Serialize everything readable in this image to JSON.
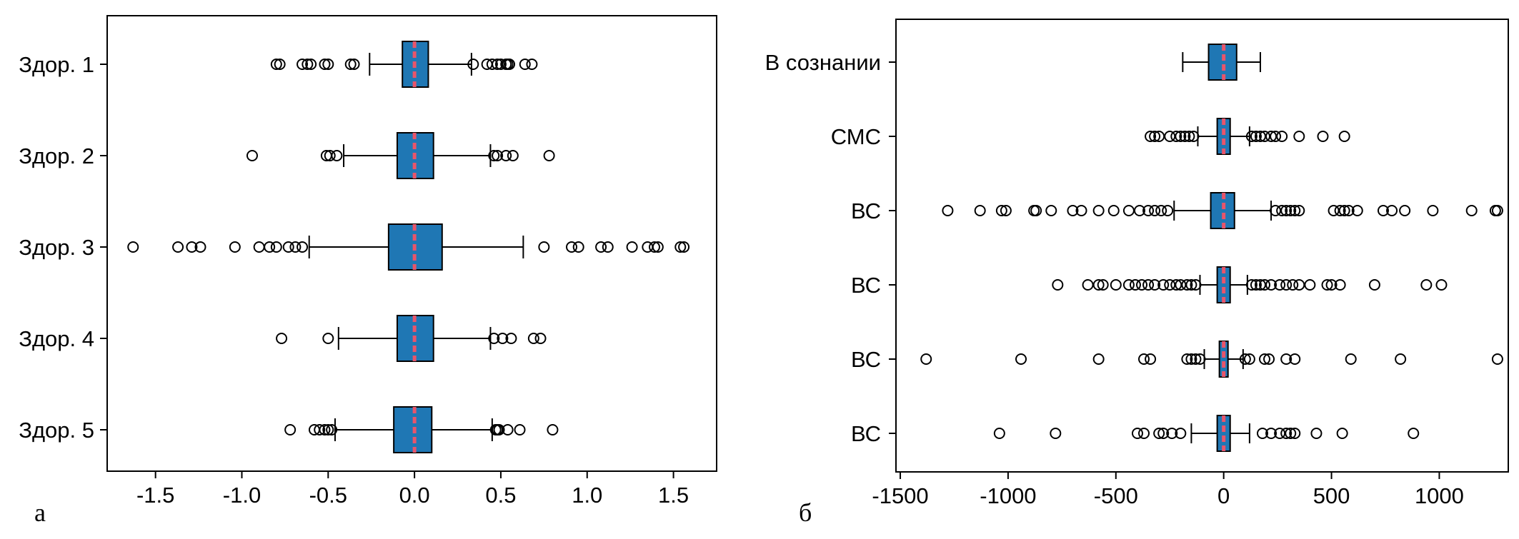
{
  "chart_data": [
    {
      "type": "boxplot",
      "orientation": "horizontal",
      "panel_label": "а",
      "xlim": [
        -1.78,
        1.75
      ],
      "xticks": [
        -1.5,
        -1.0,
        -0.5,
        0.0,
        0.5,
        1.0,
        1.5
      ],
      "xtick_labels": [
        "-1.5",
        "-1.0",
        "-0.5",
        "0.0",
        "0.5",
        "1.0",
        "1.5"
      ],
      "box_color": "#1f77b4",
      "median_color": "#e8556b",
      "boxes": [
        {
          "label": "Здор. 1",
          "whisker_low": -0.26,
          "q1": -0.07,
          "median": 0.0,
          "q3": 0.08,
          "whisker_high": 0.33,
          "outliers": [
            -0.8,
            -0.78,
            -0.65,
            -0.62,
            -0.6,
            -0.52,
            -0.5,
            -0.37,
            -0.35,
            0.34,
            0.42,
            0.45,
            0.48,
            0.5,
            0.53,
            0.54,
            0.55,
            0.64,
            0.68
          ]
        },
        {
          "label": "Здор. 2",
          "whisker_low": -0.41,
          "q1": -0.1,
          "median": 0.0,
          "q3": 0.11,
          "whisker_high": 0.44,
          "outliers": [
            -0.94,
            -0.51,
            -0.49,
            -0.45,
            0.46,
            0.48,
            0.53,
            0.57,
            0.78
          ]
        },
        {
          "label": "Здор. 3",
          "whisker_low": -0.61,
          "q1": -0.15,
          "median": 0.0,
          "q3": 0.16,
          "whisker_high": 0.63,
          "outliers": [
            -1.63,
            -1.37,
            -1.29,
            -1.24,
            -1.04,
            -0.9,
            -0.84,
            -0.8,
            -0.73,
            -0.69,
            -0.65,
            0.75,
            0.91,
            0.95,
            1.08,
            1.12,
            1.26,
            1.35,
            1.39,
            1.41,
            1.54,
            1.56
          ]
        },
        {
          "label": "Здор. 4",
          "whisker_low": -0.44,
          "q1": -0.1,
          "median": 0.0,
          "q3": 0.11,
          "whisker_high": 0.44,
          "outliers": [
            -0.77,
            -0.5,
            0.46,
            0.51,
            0.56,
            0.69,
            0.73
          ]
        },
        {
          "label": "Здор. 5",
          "whisker_low": -0.46,
          "q1": -0.12,
          "median": 0.0,
          "q3": 0.1,
          "whisker_high": 0.45,
          "outliers": [
            -0.72,
            -0.58,
            -0.55,
            -0.52,
            -0.5,
            -0.48,
            0.47,
            0.48,
            0.49,
            0.54,
            0.61,
            0.8
          ]
        }
      ]
    },
    {
      "type": "boxplot",
      "orientation": "horizontal",
      "panel_label": "б",
      "xlim": [
        -1520,
        1320
      ],
      "xticks": [
        -1500,
        -1000,
        -500,
        0,
        500,
        1000
      ],
      "xtick_labels": [
        "-1500",
        "-1000",
        "-500",
        "0",
        "500",
        "1000"
      ],
      "box_color": "#1f77b4",
      "median_color": "#e8556b",
      "boxes": [
        {
          "label": "В сознании",
          "whisker_low": -190,
          "q1": -70,
          "median": 0,
          "q3": 60,
          "whisker_high": 170,
          "outliers": []
        },
        {
          "label": "СМС",
          "whisker_low": -120,
          "q1": -30,
          "median": 0,
          "q3": 30,
          "whisker_high": 120,
          "outliers": [
            -340,
            -320,
            -300,
            -250,
            -220,
            -200,
            -180,
            -160,
            -140,
            130,
            150,
            170,
            190,
            220,
            240,
            270,
            350,
            460,
            560
          ]
        },
        {
          "label": "ВС",
          "whisker_low": -230,
          "q1": -60,
          "median": 0,
          "q3": 50,
          "whisker_high": 220,
          "outliers": [
            -1280,
            -1130,
            -1030,
            -1010,
            -880,
            -870,
            -800,
            -700,
            -660,
            -580,
            -510,
            -440,
            -390,
            -350,
            -320,
            -290,
            -260,
            240,
            270,
            290,
            310,
            330,
            350,
            510,
            540,
            560,
            580,
            620,
            740,
            780,
            840,
            970,
            1150,
            1260,
            1270
          ]
        },
        {
          "label": "ВС",
          "whisker_low": -110,
          "q1": -30,
          "median": 0,
          "q3": 30,
          "whisker_high": 110,
          "outliers": [
            -770,
            -630,
            -580,
            -560,
            -500,
            -440,
            -410,
            -380,
            -350,
            -320,
            -280,
            -250,
            -220,
            -200,
            -170,
            -150,
            -130,
            130,
            150,
            170,
            190,
            220,
            260,
            290,
            320,
            350,
            400,
            480,
            500,
            540,
            700,
            940,
            1010
          ]
        },
        {
          "label": "ВС",
          "whisker_low": -90,
          "q1": -20,
          "median": 0,
          "q3": 20,
          "whisker_high": 90,
          "outliers": [
            -1380,
            -940,
            -580,
            -370,
            -340,
            -170,
            -150,
            -130,
            -110,
            100,
            120,
            190,
            210,
            290,
            330,
            590,
            820,
            1270
          ]
        },
        {
          "label": "ВС",
          "whisker_low": -150,
          "q1": -30,
          "median": 0,
          "q3": 30,
          "whisker_high": 120,
          "outliers": [
            -1040,
            -780,
            -400,
            -370,
            -300,
            -280,
            -240,
            -200,
            180,
            220,
            260,
            290,
            310,
            330,
            430,
            550,
            880
          ]
        }
      ]
    }
  ]
}
